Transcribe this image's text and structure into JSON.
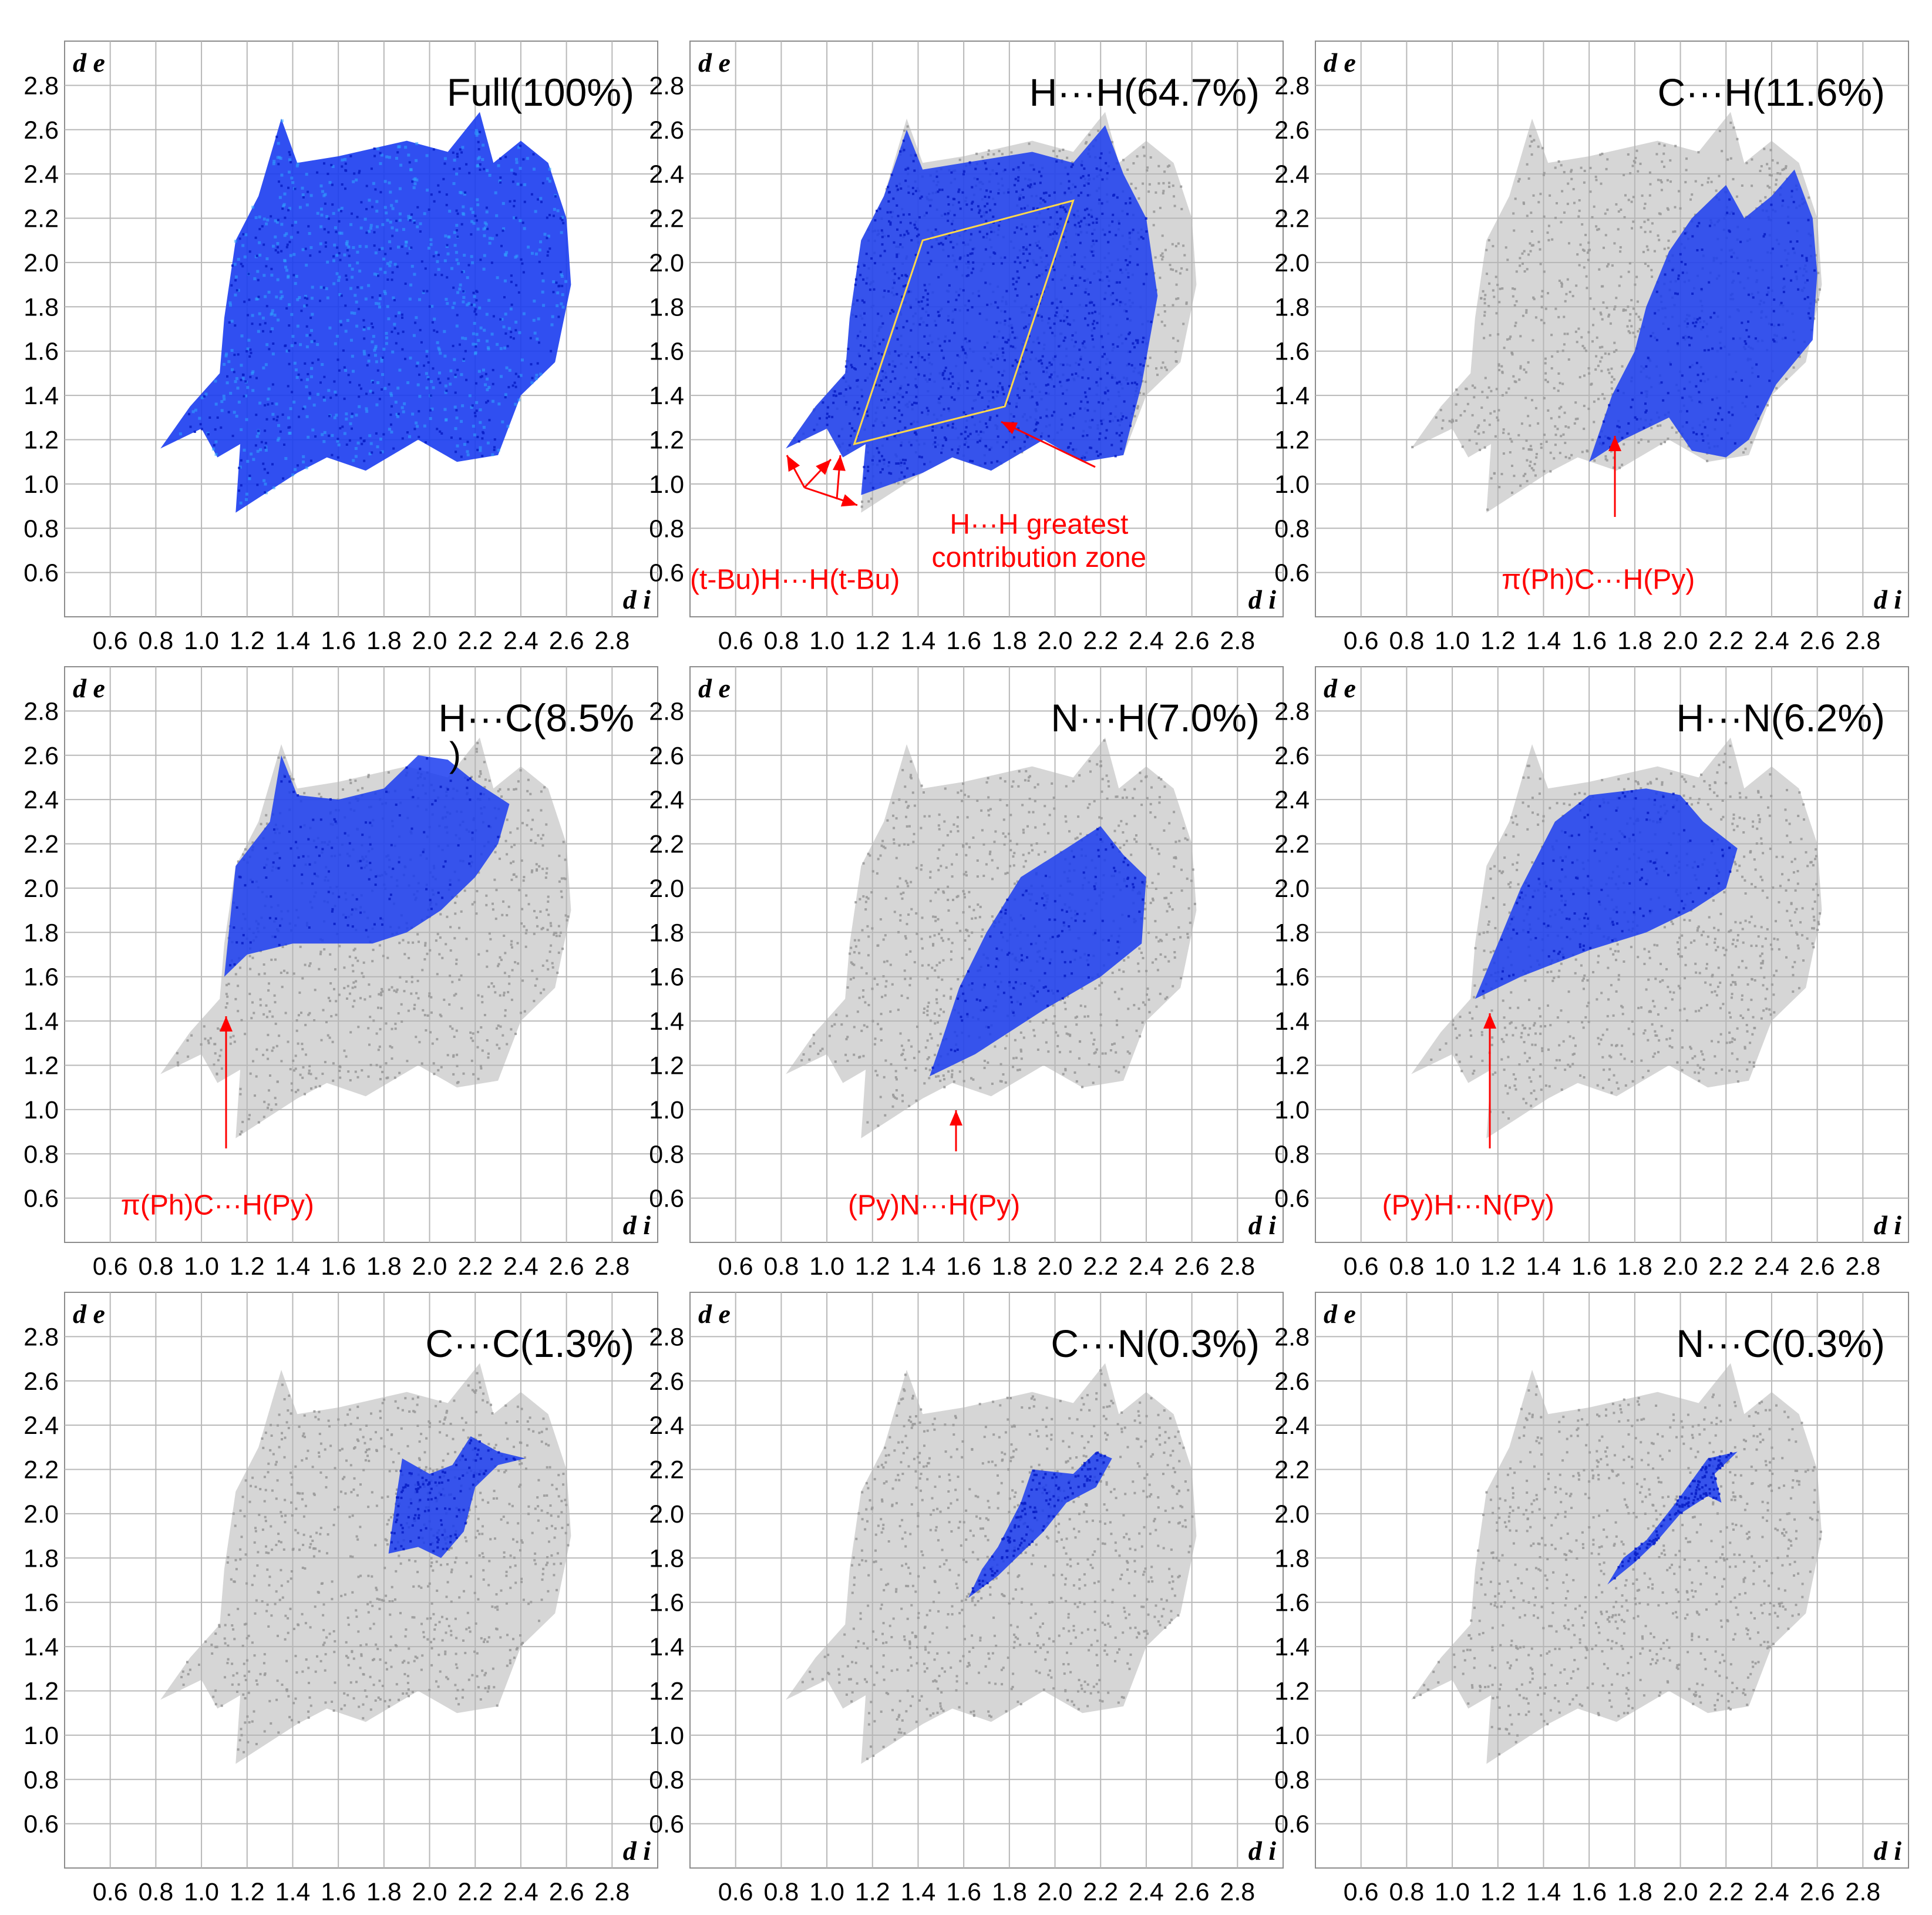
{
  "chart_data": {
    "type": "scatter",
    "figure": "Hirshfeld 2D fingerprint plots",
    "axes": {
      "x": {
        "label": "d i",
        "min": 0.4,
        "max": 3.0,
        "ticks": [
          0.6,
          0.8,
          1.0,
          1.2,
          1.4,
          1.6,
          1.8,
          2.0,
          2.2,
          2.4,
          2.6,
          2.8
        ],
        "tick_labels": [
          "0.6",
          "0.8",
          "1.0",
          "1.2",
          "1.4",
          "1.6",
          "1.8",
          "2.0",
          "2.2",
          "2.4",
          "2.6",
          "2.8"
        ]
      },
      "y": {
        "label": "d e",
        "min": 0.4,
        "max": 3.0,
        "ticks": [
          0.6,
          0.8,
          1.0,
          1.2,
          1.4,
          1.6,
          1.8,
          2.0,
          2.2,
          2.4,
          2.6,
          2.8
        ],
        "tick_labels": [
          "0.6",
          "0.8",
          "1.0",
          "1.2",
          "1.4",
          "1.6",
          "1.8",
          "2.0",
          "2.2",
          "2.4",
          "2.6",
          "2.8"
        ]
      },
      "grid": true
    },
    "colors": {
      "highlight": "#1a3cf0",
      "highlight_core": "#2fa8ff",
      "background": "#b4b4b4",
      "annotation": "#ff0000",
      "zone": "#ffd84a"
    },
    "full_region": [
      [
        0.82,
        1.16
      ],
      [
        1.0,
        1.25
      ],
      [
        1.07,
        1.12
      ],
      [
        1.17,
        1.18
      ],
      [
        1.15,
        0.87
      ],
      [
        1.42,
        1.05
      ],
      [
        1.55,
        1.12
      ],
      [
        1.72,
        1.06
      ],
      [
        1.95,
        1.2
      ],
      [
        2.12,
        1.1
      ],
      [
        2.3,
        1.13
      ],
      [
        2.4,
        1.4
      ],
      [
        2.55,
        1.55
      ],
      [
        2.62,
        1.9
      ],
      [
        2.6,
        2.2
      ],
      [
        2.52,
        2.45
      ],
      [
        2.4,
        2.55
      ],
      [
        2.28,
        2.45
      ],
      [
        2.22,
        2.68
      ],
      [
        2.08,
        2.5
      ],
      [
        1.9,
        2.55
      ],
      [
        1.6,
        2.48
      ],
      [
        1.42,
        2.45
      ],
      [
        1.35,
        2.65
      ],
      [
        1.25,
        2.3
      ],
      [
        1.15,
        2.1
      ],
      [
        1.1,
        1.75
      ],
      [
        1.08,
        1.5
      ],
      [
        0.95,
        1.35
      ]
    ],
    "panels": [
      {
        "title": "Full(100%)",
        "percent": 100.0,
        "show_background": false,
        "region": null,
        "annotations": []
      },
      {
        "title": "H···H(64.7%)",
        "percent": 64.7,
        "show_background": true,
        "region": [
          [
            0.82,
            1.16
          ],
          [
            1.0,
            1.25
          ],
          [
            1.07,
            1.12
          ],
          [
            1.17,
            1.18
          ],
          [
            1.15,
            0.95
          ],
          [
            1.42,
            1.05
          ],
          [
            1.55,
            1.12
          ],
          [
            1.72,
            1.06
          ],
          [
            1.95,
            1.2
          ],
          [
            2.12,
            1.1
          ],
          [
            2.3,
            1.13
          ],
          [
            2.38,
            1.45
          ],
          [
            2.45,
            1.85
          ],
          [
            2.4,
            2.2
          ],
          [
            2.3,
            2.4
          ],
          [
            2.22,
            2.62
          ],
          [
            2.08,
            2.45
          ],
          [
            1.9,
            2.5
          ],
          [
            1.6,
            2.45
          ],
          [
            1.42,
            2.42
          ],
          [
            1.35,
            2.6
          ],
          [
            1.25,
            2.3
          ],
          [
            1.15,
            2.1
          ],
          [
            1.1,
            1.75
          ],
          [
            1.08,
            1.5
          ],
          [
            0.95,
            1.35
          ]
        ],
        "zone": [
          [
            1.12,
            1.18
          ],
          [
            1.42,
            2.1
          ],
          [
            2.08,
            2.28
          ],
          [
            1.78,
            1.35
          ]
        ],
        "annotations": [
          {
            "text": "H···H greatest",
            "x": 1.93,
            "y": 0.82
          },
          {
            "text": "contribution zone",
            "x": 1.93,
            "y": 0.67
          },
          {
            "text": "(t-Bu)H···H(t-Bu)",
            "x": 0.86,
            "y": 0.57
          }
        ]
      },
      {
        "title": "C···H(11.6%)",
        "percent": 11.6,
        "show_background": true,
        "region": [
          [
            1.6,
            1.1
          ],
          [
            1.75,
            1.2
          ],
          [
            1.95,
            1.3
          ],
          [
            2.05,
            1.15
          ],
          [
            2.2,
            1.12
          ],
          [
            2.3,
            1.2
          ],
          [
            2.42,
            1.45
          ],
          [
            2.58,
            1.65
          ],
          [
            2.6,
            1.95
          ],
          [
            2.58,
            2.2
          ],
          [
            2.5,
            2.42
          ],
          [
            2.4,
            2.3
          ],
          [
            2.28,
            2.2
          ],
          [
            2.2,
            2.35
          ],
          [
            2.05,
            2.2
          ],
          [
            1.95,
            2.05
          ],
          [
            1.85,
            1.8
          ],
          [
            1.8,
            1.6
          ],
          [
            1.7,
            1.4
          ]
        ],
        "annotations": [
          {
            "text": "π(Ph)C···H(Py)",
            "x": 1.64,
            "y": 0.57
          }
        ]
      },
      {
        "title": "H···C(8.5%",
        "title_tail": ")",
        "percent": 8.5,
        "show_background": true,
        "region": [
          [
            1.1,
            1.6
          ],
          [
            1.2,
            1.7
          ],
          [
            1.4,
            1.75
          ],
          [
            1.75,
            1.75
          ],
          [
            1.9,
            1.8
          ],
          [
            2.05,
            1.9
          ],
          [
            2.2,
            2.05
          ],
          [
            2.3,
            2.2
          ],
          [
            2.35,
            2.38
          ],
          [
            2.2,
            2.48
          ],
          [
            2.08,
            2.58
          ],
          [
            1.95,
            2.6
          ],
          [
            1.8,
            2.45
          ],
          [
            1.6,
            2.4
          ],
          [
            1.42,
            2.42
          ],
          [
            1.35,
            2.6
          ],
          [
            1.3,
            2.3
          ],
          [
            1.15,
            2.1
          ]
        ],
        "annotations": [
          {
            "text": "π(Ph)C···H(Py)",
            "x": 1.07,
            "y": 0.57
          }
        ]
      },
      {
        "title": "N···H(7.0%)",
        "percent": 7.0,
        "show_background": true,
        "region": [
          [
            1.45,
            1.15
          ],
          [
            1.65,
            1.25
          ],
          [
            1.95,
            1.45
          ],
          [
            2.2,
            1.6
          ],
          [
            2.38,
            1.75
          ],
          [
            2.4,
            2.05
          ],
          [
            2.3,
            2.15
          ],
          [
            2.2,
            2.28
          ],
          [
            2.05,
            2.18
          ],
          [
            1.85,
            2.05
          ],
          [
            1.7,
            1.8
          ],
          [
            1.58,
            1.55
          ],
          [
            1.5,
            1.3
          ]
        ],
        "annotations": [
          {
            "text": "(Py)N···H(Py)",
            "x": 1.47,
            "y": 0.57
          }
        ]
      },
      {
        "title": "H···N(6.2%)",
        "percent": 6.2,
        "show_background": true,
        "region": [
          [
            1.1,
            1.5
          ],
          [
            1.3,
            1.6
          ],
          [
            1.6,
            1.72
          ],
          [
            1.85,
            1.8
          ],
          [
            2.05,
            1.9
          ],
          [
            2.2,
            2.0
          ],
          [
            2.25,
            2.18
          ],
          [
            2.1,
            2.3
          ],
          [
            2.0,
            2.42
          ],
          [
            1.85,
            2.45
          ],
          [
            1.6,
            2.42
          ],
          [
            1.45,
            2.3
          ],
          [
            1.3,
            2.0
          ],
          [
            1.2,
            1.75
          ]
        ],
        "annotations": [
          {
            "text": "(Py)H···N(Py)",
            "x": 1.07,
            "y": 0.57
          }
        ]
      },
      {
        "title": "C···C(1.3%)",
        "percent": 1.3,
        "show_background": true,
        "region": [
          [
            1.82,
            1.82
          ],
          [
            1.95,
            1.85
          ],
          [
            2.05,
            1.8
          ],
          [
            2.15,
            1.92
          ],
          [
            2.2,
            2.12
          ],
          [
            2.3,
            2.22
          ],
          [
            2.42,
            2.25
          ],
          [
            2.3,
            2.28
          ],
          [
            2.18,
            2.35
          ],
          [
            2.1,
            2.22
          ],
          [
            2.0,
            2.18
          ],
          [
            1.88,
            2.25
          ],
          [
            1.85,
            2.05
          ]
        ],
        "annotations": []
      },
      {
        "title": "C···N(0.3%)",
        "percent": 0.3,
        "show_background": true,
        "region": [
          [
            1.62,
            1.62
          ],
          [
            1.75,
            1.72
          ],
          [
            1.85,
            1.82
          ],
          [
            1.95,
            1.92
          ],
          [
            2.05,
            2.05
          ],
          [
            2.18,
            2.12
          ],
          [
            2.25,
            2.25
          ],
          [
            2.18,
            2.28
          ],
          [
            2.08,
            2.18
          ],
          [
            1.9,
            2.2
          ],
          [
            1.85,
            2.05
          ],
          [
            1.75,
            1.85
          ],
          [
            1.68,
            1.75
          ]
        ],
        "annotations": []
      },
      {
        "title": "N···C(0.3%)",
        "percent": 0.3,
        "show_background": true,
        "region": [
          [
            1.68,
            1.68
          ],
          [
            1.8,
            1.78
          ],
          [
            1.9,
            1.88
          ],
          [
            2.0,
            2.0
          ],
          [
            2.12,
            2.08
          ],
          [
            2.18,
            2.05
          ],
          [
            2.15,
            2.18
          ],
          [
            2.25,
            2.28
          ],
          [
            2.12,
            2.25
          ],
          [
            2.05,
            2.15
          ],
          [
            1.98,
            2.05
          ],
          [
            1.85,
            1.88
          ],
          [
            1.75,
            1.8
          ]
        ],
        "annotations": []
      }
    ]
  }
}
